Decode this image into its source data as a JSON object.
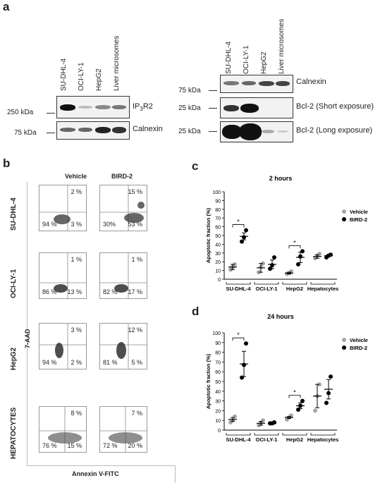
{
  "panel_a": {
    "letter": "a",
    "left_lanes": [
      "SU-DHL-4",
      "OCI-LY-1",
      "HepG2",
      "Liver microsomes"
    ],
    "right_lanes": [
      "SU-DHL-4",
      "OCI-LY-1",
      "HepG2",
      "Liver microsomes"
    ],
    "left_blots": [
      {
        "name": "IP3R2",
        "name_main": "IP",
        "name_sub": "3",
        "name_tail": "R2",
        "mw": "250 kDa"
      },
      {
        "name": "Calnexin",
        "mw": "75 kDa"
      }
    ],
    "right_blots": [
      {
        "name": "Calnexin",
        "mw": "75 kDa"
      },
      {
        "name": "Bcl-2 (Short exposure)",
        "mw": "25 kDa"
      },
      {
        "name": "Bcl-2 (Long exposure)",
        "mw": "25 kDa"
      }
    ]
  },
  "panel_b": {
    "letter": "b",
    "columns": [
      "Vehicle",
      "BIRD-2"
    ],
    "rows": [
      {
        "label": "SU-DHL-4",
        "vehicle": {
          "ur": "2 %",
          "ll": "94 %",
          "lr": "3 %"
        },
        "bird": {
          "ur": "15 %",
          "ll": "30%",
          "lr": "53 %"
        }
      },
      {
        "label": "OCI-LY-1",
        "vehicle": {
          "ur": "1 %",
          "ll": "86 %",
          "lr": "13 %"
        },
        "bird": {
          "ur": "1 %",
          "ll": "82 %",
          "lr": "17 %"
        }
      },
      {
        "label": "HepG2",
        "vehicle": {
          "ur": "3 %",
          "ll": "94 %",
          "lr": "2 %"
        },
        "bird": {
          "ur": "12 %",
          "ll": "81 %",
          "lr": "5 %"
        }
      },
      {
        "label": "HEPATOCYTES",
        "vehicle": {
          "ur": "8 %",
          "ll": "76 %",
          "lr": "15 %"
        },
        "bird": {
          "ur": "7 %",
          "ll": "72 %",
          "lr": "20 %"
        }
      }
    ],
    "y_axis_label": "7-AAD",
    "x_axis_label": "Annexin V-FITC"
  },
  "panel_c": {
    "letter": "c"
  },
  "panel_d": {
    "letter": "d"
  },
  "chart_data": [
    {
      "type": "scatter",
      "title": "2 hours",
      "ylabel": "Apoptotic fraction (%)",
      "ylim": [
        0,
        100
      ],
      "yticks": [
        0,
        10,
        20,
        30,
        40,
        50,
        60,
        70,
        80,
        90,
        100
      ],
      "categories": [
        "SU-DHL-4",
        "OCI-LY-1",
        "HepG2",
        "Hepatocytes"
      ],
      "legend": "right",
      "significance": [
        "*",
        "",
        "*",
        ""
      ],
      "colors": {
        "Vehicle": "#a6a6a6",
        "BIRD-2": "#000000"
      },
      "series": [
        {
          "name": "Vehicle",
          "points": [
            [
              11,
              14,
              17
            ],
            [
              8,
              14,
              18
            ],
            [
              6,
              7,
              9
            ],
            [
              24,
              27,
              29
            ]
          ],
          "mean": [
            14,
            13,
            7,
            26
          ],
          "sem": [
            3,
            5,
            1,
            2
          ]
        },
        {
          "name": "BIRD-2",
          "points": [
            [
              43,
              48,
              56
            ],
            [
              12,
              16,
              25
            ],
            [
              17,
              26,
              32
            ],
            [
              25,
              27,
              28
            ]
          ],
          "mean": [
            49,
            17,
            25,
            27
          ],
          "sem": [
            4,
            5,
            6,
            1
          ]
        }
      ]
    },
    {
      "type": "scatter",
      "title": "24 hours",
      "ylabel": "Apoptotic fraction (%)",
      "ylim": [
        0,
        100
      ],
      "yticks": [
        0,
        10,
        20,
        30,
        40,
        50,
        60,
        70,
        80,
        90,
        100
      ],
      "categories": [
        "SU-DHL-4",
        "OCI-LY-1",
        "HepG2",
        "Hepatocytes"
      ],
      "legend": "right",
      "significance": [
        "*",
        "",
        "*",
        ""
      ],
      "colors": {
        "Vehicle": "#a6a6a6",
        "BIRD-2": "#000000"
      },
      "series": [
        {
          "name": "Vehicle",
          "points": [
            [
              8,
              10,
              14
            ],
            [
              5,
              7,
              10
            ],
            [
              11,
              13,
              15
            ],
            [
              20,
              35,
              47
            ]
          ],
          "mean": [
            11,
            7,
            13,
            35
          ],
          "sem": [
            2,
            2,
            1,
            12
          ]
        },
        {
          "name": "BIRD-2",
          "points": [
            [
              54,
              67,
              89
            ],
            [
              7,
              7,
              8
            ],
            [
              21,
              25,
              30
            ],
            [
              28,
              38,
              55
            ]
          ],
          "mean": [
            68,
            7,
            25,
            42
          ],
          "sem": [
            13,
            1,
            3,
            10
          ]
        }
      ]
    }
  ]
}
